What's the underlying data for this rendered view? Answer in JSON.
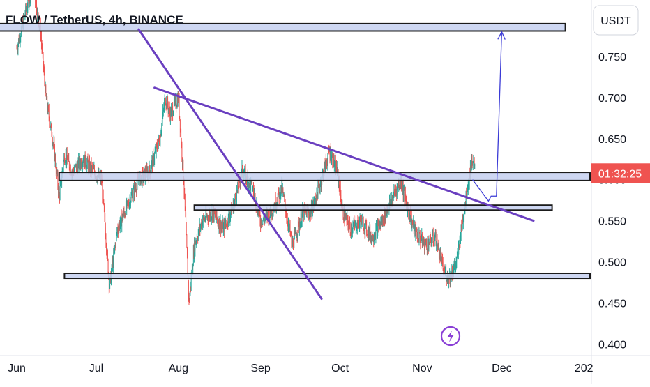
{
  "header": {
    "symbol_title": "FLOW / TetherUS, 4h, BINANCE"
  },
  "price_scale": {
    "currency": "USDT",
    "countdown": "01:32:25"
  },
  "colors": {
    "bull": "#26a69a",
    "bear": "#ef5350",
    "zone_fill": "#c5d0f0",
    "zone_border": "#1b1b1b",
    "trendline": "#6a3fc0",
    "projection": "#3b3bd6",
    "countdown_bg": "#ef5350",
    "flash_icon": "#8a3fd6"
  },
  "icons": {
    "flash_badge": "lightning-icon"
  },
  "chart_data": {
    "type": "candlestick",
    "title": "FLOW / TetherUS, 4h, BINANCE",
    "y_unit": "USDT",
    "ylim": [
      0.395,
      0.8
    ],
    "y_ticks": [
      0.4,
      0.45,
      0.5,
      0.55,
      0.6,
      0.65,
      0.7,
      0.75
    ],
    "y_tick_labels": [
      "0.400",
      "0.450",
      "0.500",
      "0.550",
      "0.600",
      "0.650",
      "0.700",
      "0.750"
    ],
    "x_tick_labels": [
      "Jun",
      "Jul",
      "Aug",
      "Sep",
      "Oct",
      "Nov",
      "Dec",
      "202"
    ],
    "x_ticks": [
      "2023-06-01",
      "2023-07-01",
      "2023-08-01",
      "2023-09-01",
      "2023-10-01",
      "2023-11-01",
      "2023-12-01",
      "2024-01-01"
    ],
    "xlim": [
      "2023-06-01",
      "2024-01-01"
    ],
    "grid": false,
    "price_path": [
      [
        "2023-06-01",
        0.76
      ],
      [
        "2023-06-07",
        0.84
      ],
      [
        "2023-06-10",
        0.78
      ],
      [
        "2023-06-12",
        0.7
      ],
      [
        "2023-06-15",
        0.64
      ],
      [
        "2023-06-17",
        0.58
      ],
      [
        "2023-06-19",
        0.63
      ],
      [
        "2023-06-22",
        0.61
      ],
      [
        "2023-06-26",
        0.625
      ],
      [
        "2023-06-30",
        0.61
      ],
      [
        "2023-07-03",
        0.6
      ],
      [
        "2023-07-06",
        0.47
      ],
      [
        "2023-07-09",
        0.54
      ],
      [
        "2023-07-13",
        0.57
      ],
      [
        "2023-07-17",
        0.6
      ],
      [
        "2023-07-21",
        0.61
      ],
      [
        "2023-07-25",
        0.65
      ],
      [
        "2023-07-27",
        0.7
      ],
      [
        "2023-07-29",
        0.68
      ],
      [
        "2023-08-01",
        0.7
      ],
      [
        "2023-08-03",
        0.6
      ],
      [
        "2023-08-05",
        0.45
      ],
      [
        "2023-08-07",
        0.52
      ],
      [
        "2023-08-10",
        0.55
      ],
      [
        "2023-08-14",
        0.56
      ],
      [
        "2023-08-18",
        0.54
      ],
      [
        "2023-08-22",
        0.57
      ],
      [
        "2023-08-25",
        0.61
      ],
      [
        "2023-08-29",
        0.59
      ],
      [
        "2023-09-01",
        0.55
      ],
      [
        "2023-09-05",
        0.56
      ],
      [
        "2023-09-09",
        0.59
      ],
      [
        "2023-09-13",
        0.52
      ],
      [
        "2023-09-17",
        0.56
      ],
      [
        "2023-09-20",
        0.56
      ],
      [
        "2023-09-23",
        0.59
      ],
      [
        "2023-09-27",
        0.635
      ],
      [
        "2023-09-30",
        0.61
      ],
      [
        "2023-10-02",
        0.56
      ],
      [
        "2023-10-05",
        0.54
      ],
      [
        "2023-10-09",
        0.55
      ],
      [
        "2023-10-13",
        0.53
      ],
      [
        "2023-10-17",
        0.55
      ],
      [
        "2023-10-21",
        0.58
      ],
      [
        "2023-10-24",
        0.6
      ],
      [
        "2023-10-26",
        0.57
      ],
      [
        "2023-10-29",
        0.54
      ],
      [
        "2023-11-02",
        0.52
      ],
      [
        "2023-11-06",
        0.53
      ],
      [
        "2023-11-09",
        0.49
      ],
      [
        "2023-11-11",
        0.48
      ],
      [
        "2023-11-14",
        0.5
      ],
      [
        "2023-11-18",
        0.59
      ],
      [
        "2023-11-20",
        0.625
      ],
      [
        "2023-11-21",
        0.61
      ]
    ],
    "zones": [
      {
        "from": "2023-05-22",
        "to": "2023-12-25",
        "low": 0.781,
        "high": 0.79
      },
      {
        "from": "2023-06-17",
        "to": "2024-01-04",
        "low": 0.599,
        "high": 0.609
      },
      {
        "from": "2023-08-07",
        "to": "2023-12-20",
        "low": 0.563,
        "high": 0.569
      },
      {
        "from": "2023-06-19",
        "to": "2024-01-04",
        "low": 0.48,
        "high": 0.486
      }
    ],
    "trendlines": [
      {
        "from": [
          "2023-07-17",
          0.783
        ],
        "to": [
          "2023-09-24",
          0.455
        ]
      },
      {
        "from": [
          "2023-07-23",
          0.712
        ],
        "to": [
          "2023-12-13",
          0.55
        ]
      }
    ],
    "projection_path": [
      [
        "2023-11-20",
        0.6
      ],
      [
        "2023-11-26",
        0.574
      ],
      [
        "2023-11-27",
        0.58
      ],
      [
        "2023-11-29",
        0.58
      ],
      [
        "2023-12-01",
        0.78
      ]
    ],
    "last_price": 0.608
  }
}
